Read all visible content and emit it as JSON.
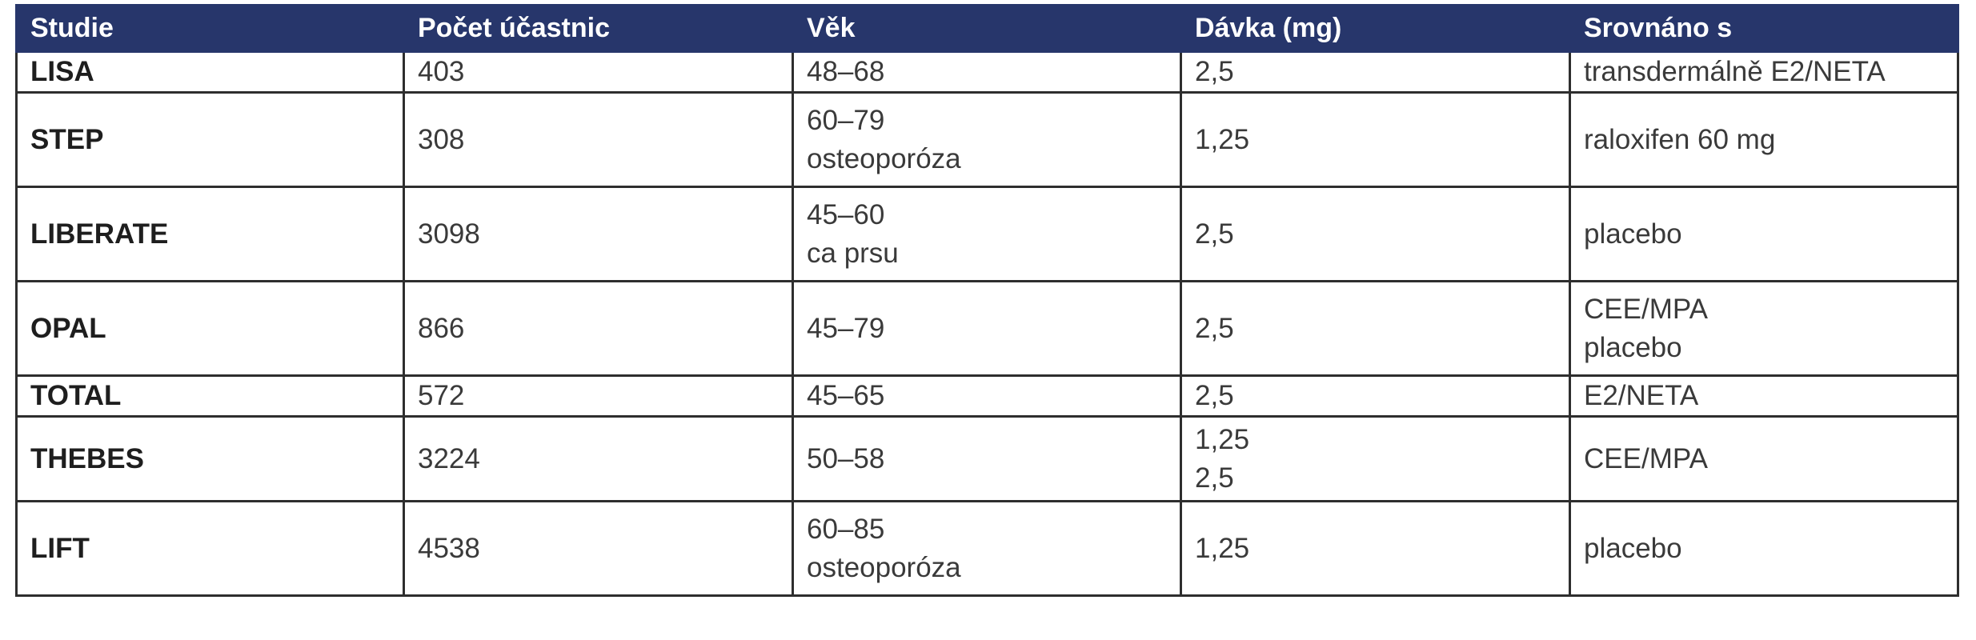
{
  "table": {
    "headers": [
      "Studie",
      "Počet účastnic",
      "Věk",
      "Dávka (mg)",
      "Srovnáno s"
    ],
    "rows": [
      {
        "studie": "LISA",
        "pocet": "403",
        "vek": [
          "48–68"
        ],
        "davka": [
          "2,5"
        ],
        "srovnano": [
          "transdermálně E2/NETA"
        ]
      },
      {
        "studie": "STEP",
        "pocet": "308",
        "vek": [
          "60–79",
          "osteoporóza"
        ],
        "davka": [
          "1,25"
        ],
        "srovnano": [
          "raloxifen 60 mg"
        ]
      },
      {
        "studie": "LIBERATE",
        "pocet": "3098",
        "vek": [
          "45–60",
          "ca prsu"
        ],
        "davka": [
          "2,5"
        ],
        "srovnano": [
          "placebo"
        ]
      },
      {
        "studie": "OPAL",
        "pocet": "866",
        "vek": [
          "45–79"
        ],
        "davka": [
          "2,5"
        ],
        "srovnano": [
          "CEE/MPA",
          "placebo"
        ]
      },
      {
        "studie": "TOTAL",
        "pocet": "572",
        "vek": [
          "45–65"
        ],
        "davka": [
          "2,5"
        ],
        "srovnano": [
          "E2/NETA"
        ]
      },
      {
        "studie": "THEBES",
        "pocet": "3224",
        "vek": [
          "50–58"
        ],
        "davka": [
          "1,25",
          "2,5"
        ],
        "srovnano": [
          "CEE/MPA"
        ]
      },
      {
        "studie": "LIFT",
        "pocet": "4538",
        "vek": [
          "60–85",
          "osteoporóza"
        ],
        "davka": [
          "1,25"
        ],
        "srovnano": [
          "placebo"
        ]
      }
    ]
  },
  "colors": {
    "header_background": "#27366b",
    "header_text": "#ffffff",
    "border": "#2e2e2e",
    "cell_text": "#3a3a3a"
  }
}
